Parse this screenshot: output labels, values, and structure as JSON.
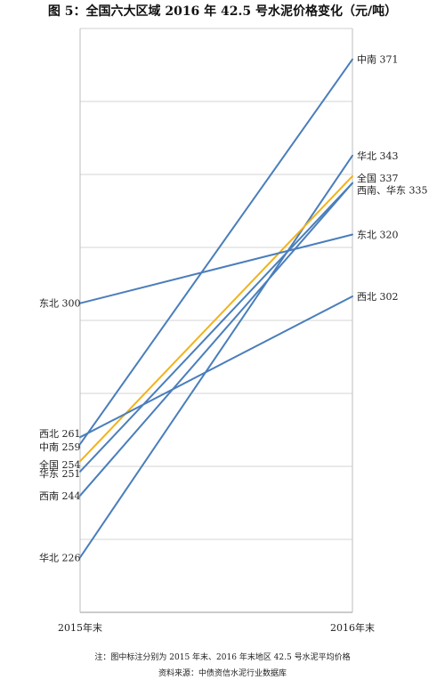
{
  "title": "图 5：全国六大区域 2016 年 42.5 号水泥价格变化（元/吨）",
  "note": "注：图中标注分别为 2015 年末、2016 年末地区 42.5 号水泥平均价格",
  "source": "资料来源：中债资信水泥行业数据库",
  "chart_data": {
    "type": "line",
    "categories": [
      "2015年末",
      "2016年末"
    ],
    "ylim": [
      210,
      380
    ],
    "grid": true,
    "series": [
      {
        "name": "中南",
        "values": [
          259,
          371
        ],
        "color": "#4a7ebb",
        "start_label": "中南 259",
        "end_label": "中南 371"
      },
      {
        "name": "华北",
        "values": [
          226,
          343
        ],
        "color": "#4a7ebb",
        "start_label": "华北 226",
        "end_label": "华北 343"
      },
      {
        "name": "全国",
        "values": [
          254,
          337
        ],
        "color": "#f2b21a",
        "start_label": "全国 254",
        "end_label": "全国 337"
      },
      {
        "name": "华东",
        "values": [
          251,
          335
        ],
        "color": "#4a7ebb",
        "start_label": "华东 251",
        "end_label": ""
      },
      {
        "name": "西南",
        "values": [
          244,
          335
        ],
        "color": "#4a7ebb",
        "start_label": "西南 244",
        "end_label": "西南、华东 335"
      },
      {
        "name": "东北",
        "values": [
          300,
          320
        ],
        "color": "#4a7ebb",
        "start_label": "东北 300",
        "end_label": "东北 320"
      },
      {
        "name": "西北",
        "values": [
          261,
          302
        ],
        "color": "#4a7ebb",
        "start_label": "西北 261",
        "end_label": "西北 302"
      }
    ]
  }
}
